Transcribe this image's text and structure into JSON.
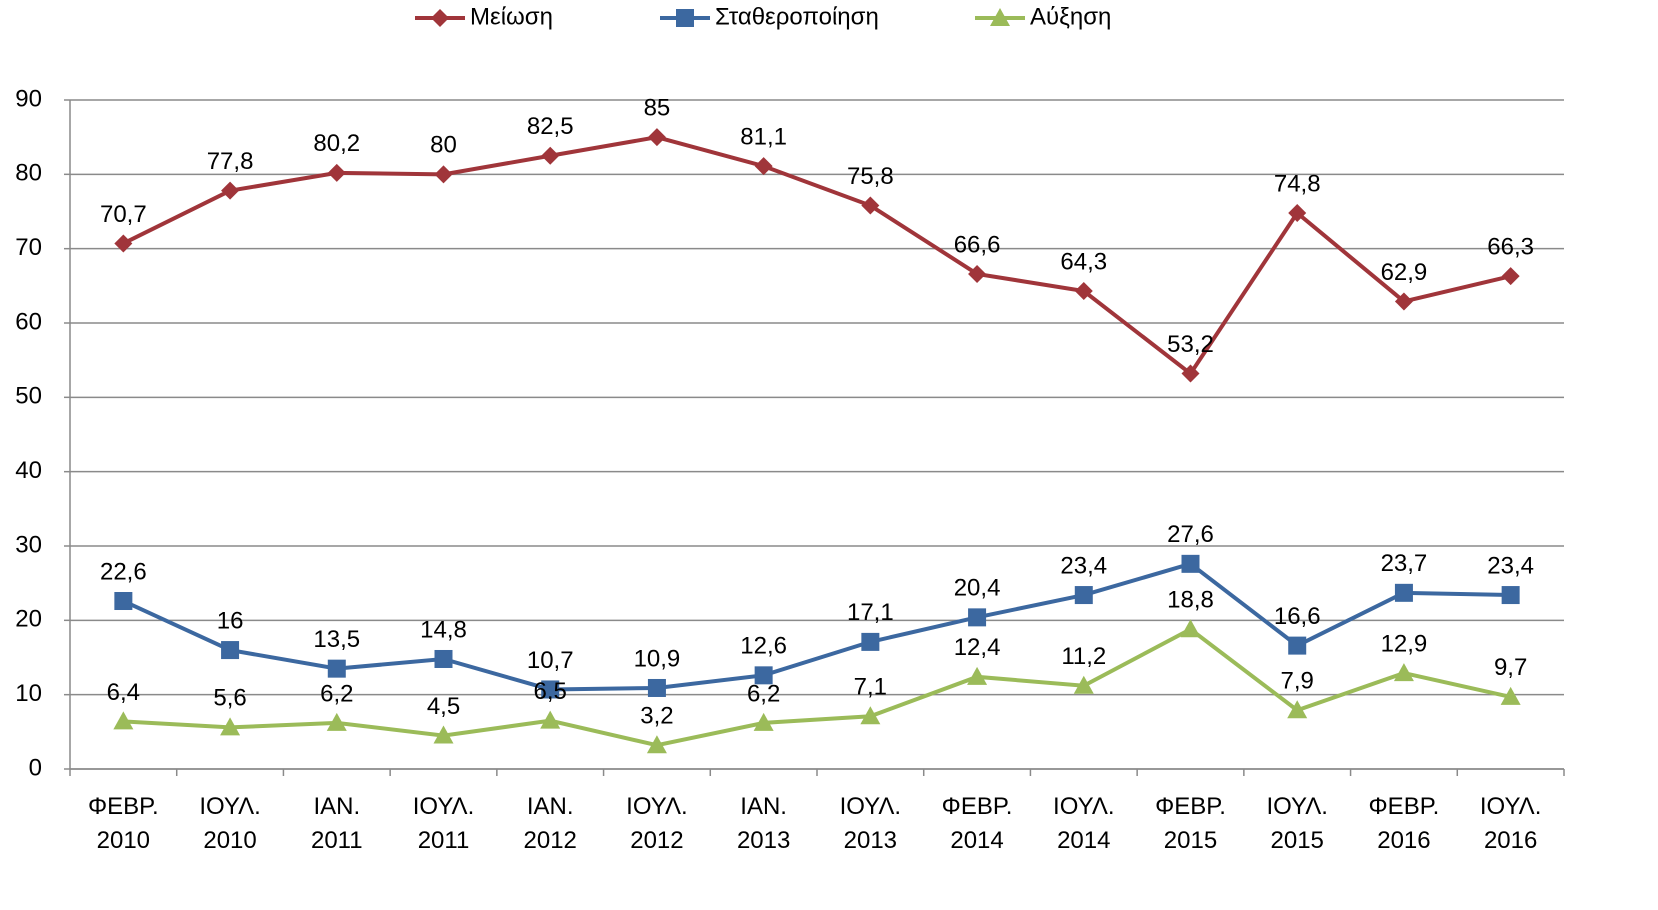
{
  "chart_data": {
    "type": "line",
    "categories": [
      "ΦΕΒΡ. 2010",
      "ΙΟΥΛ. 2010",
      "ΙΑΝ. 2011",
      "ΙΟΥΛ. 2011",
      "ΙΑΝ. 2012",
      "ΙΟΥΛ. 2012",
      "ΙΑΝ. 2013",
      "ΙΟΥΛ. 2013",
      "ΦΕΒΡ. 2014",
      "ΙΟΥΛ. 2014",
      "ΦΕΒΡ. 2015",
      "ΙΟΥΛ. 2015",
      "ΦΕΒΡ. 2016",
      "ΙΟΥΛ. 2016"
    ],
    "series": [
      {
        "name": "Μείωση",
        "color": "#a0353a",
        "marker": "diamond",
        "values": [
          70.7,
          77.8,
          80.2,
          80,
          82.5,
          85,
          81.1,
          75.8,
          66.6,
          64.3,
          53.2,
          74.8,
          62.9,
          66.3
        ],
        "value_labels": [
          "70,7",
          "77,8",
          "80,2",
          "80",
          "82,5",
          "85",
          "81,1",
          "75,8",
          "66,6",
          "64,3",
          "53,2",
          "74,8",
          "62,9",
          "66,3"
        ]
      },
      {
        "name": "Σταθεροποίηση",
        "color": "#3c68a0",
        "marker": "square",
        "values": [
          22.6,
          16,
          13.5,
          14.8,
          10.7,
          10.9,
          12.6,
          17.1,
          20.4,
          23.4,
          27.6,
          16.6,
          23.7,
          23.4
        ],
        "value_labels": [
          "22,6",
          "16",
          "13,5",
          "14,8",
          "10,7",
          "10,9",
          "12,6",
          "17,1",
          "20,4",
          "23,4",
          "27,6",
          "16,6",
          "23,7",
          "23,4"
        ]
      },
      {
        "name": "Αύξηση",
        "color": "#9bbb59",
        "marker": "triangle",
        "values": [
          6.4,
          5.6,
          6.2,
          4.5,
          6.5,
          3.2,
          6.2,
          7.1,
          12.4,
          11.2,
          18.8,
          7.9,
          12.9,
          9.7
        ],
        "value_labels": [
          "6,4",
          "5,6",
          "6,2",
          "4,5",
          "6,5",
          "3,2",
          "6,2",
          "7,1",
          "12,4",
          "11,2",
          "18,8",
          "7,9",
          "12,9",
          "9,7"
        ]
      }
    ],
    "ylim": [
      0,
      90
    ],
    "yticks": [
      0,
      10,
      20,
      30,
      40,
      50,
      60,
      70,
      80,
      90
    ],
    "grid": true,
    "legend": "top"
  }
}
